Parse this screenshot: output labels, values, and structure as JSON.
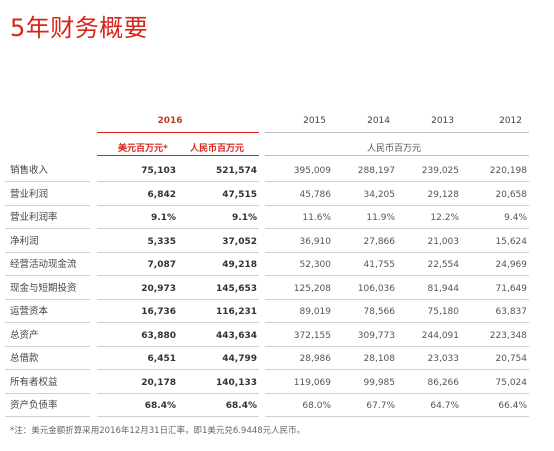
{
  "title": "5年财务概要",
  "headers": {
    "year_2016": "2016",
    "years_other": [
      "2015",
      "2014",
      "2013",
      "2012"
    ],
    "unit_usd": "美元百万元*",
    "unit_rmb": "人民币百万元",
    "unit_other": "人民币百万元"
  },
  "rows": [
    {
      "label": "销售收入",
      "v": [
        "75,103",
        "521,574",
        "395,009",
        "288,197",
        "239,025",
        "220,198"
      ]
    },
    {
      "label": "营业利润",
      "v": [
        "6,842",
        "47,515",
        "45,786",
        "34,205",
        "29,128",
        "20,658"
      ]
    },
    {
      "label": "营业利润率",
      "v": [
        "9.1%",
        "9.1%",
        "11.6%",
        "11.9%",
        "12.2%",
        "9.4%"
      ]
    },
    {
      "label": "净利润",
      "v": [
        "5,335",
        "37,052",
        "36,910",
        "27,866",
        "21,003",
        "15,624"
      ]
    },
    {
      "label": "经营活动现金流",
      "v": [
        "7,087",
        "49,218",
        "52,300",
        "41,755",
        "22,554",
        "24,969"
      ]
    },
    {
      "label": "现金与短期投资",
      "v": [
        "20,973",
        "145,653",
        "125,208",
        "106,036",
        "81,944",
        "71,649"
      ]
    },
    {
      "label": "运营资本",
      "v": [
        "16,736",
        "116,231",
        "89,019",
        "78,566",
        "75,180",
        "63,837"
      ]
    },
    {
      "label": "总资产",
      "v": [
        "63,880",
        "443,634",
        "372,155",
        "309,773",
        "244,091",
        "223,348"
      ]
    },
    {
      "label": "总借款",
      "v": [
        "6,451",
        "44,799",
        "28,986",
        "28,108",
        "23,033",
        "20,754"
      ]
    },
    {
      "label": "所有者权益",
      "v": [
        "20,178",
        "140,133",
        "119,069",
        "99,985",
        "86,266",
        "75,024"
      ]
    },
    {
      "label": "资产负债率",
      "v": [
        "68.4%",
        "68.4%",
        "68.0%",
        "67.7%",
        "64.7%",
        "66.4%"
      ]
    }
  ],
  "footnote": "*注：美元金额折算采用2016年12月31日汇率，即1美元兑6.9448元人民币。",
  "colors": {
    "accent": "#d9241b"
  }
}
